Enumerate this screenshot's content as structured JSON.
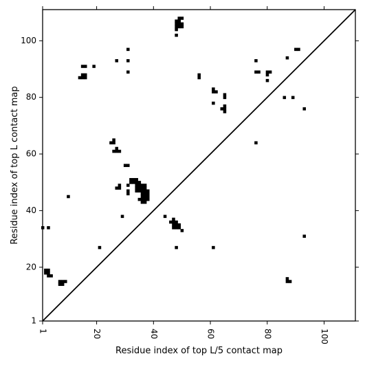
{
  "chart_data": {
    "type": "scatter",
    "title": "",
    "xlabel": "Residue index of top L/5 contact map",
    "ylabel": "Residue index of top L contact map",
    "xlim": [
      1,
      111
    ],
    "ylim": [
      1,
      111
    ],
    "xticks": [
      1,
      20,
      40,
      60,
      80,
      100
    ],
    "yticks": [
      1,
      20,
      40,
      60,
      80,
      100
    ],
    "marker": "square",
    "marker_color": "#000000",
    "grid": false,
    "diagonal": true,
    "points": [
      [
        1,
        34
      ],
      [
        3,
        34
      ],
      [
        2,
        18
      ],
      [
        2,
        19
      ],
      [
        3,
        18
      ],
      [
        3,
        19
      ],
      [
        3,
        17
      ],
      [
        4,
        17
      ],
      [
        7,
        14
      ],
      [
        7,
        15
      ],
      [
        8,
        14
      ],
      [
        8,
        15
      ],
      [
        9,
        15
      ],
      [
        10,
        45
      ],
      [
        14,
        87
      ],
      [
        15,
        87
      ],
      [
        15,
        88
      ],
      [
        16,
        87
      ],
      [
        16,
        88
      ],
      [
        15,
        91
      ],
      [
        16,
        91
      ],
      [
        19,
        91
      ],
      [
        21,
        27
      ],
      [
        25,
        64
      ],
      [
        26,
        64
      ],
      [
        26,
        65
      ],
      [
        26,
        61
      ],
      [
        27,
        61
      ],
      [
        27,
        62
      ],
      [
        28,
        61
      ],
      [
        27,
        48
      ],
      [
        28,
        48
      ],
      [
        28,
        49
      ],
      [
        27,
        93
      ],
      [
        29,
        38
      ],
      [
        30,
        56
      ],
      [
        31,
        56
      ],
      [
        31,
        97
      ],
      [
        31,
        93
      ],
      [
        31,
        89
      ],
      [
        31,
        49
      ],
      [
        31,
        47
      ],
      [
        31,
        46
      ],
      [
        32,
        50
      ],
      [
        32,
        51
      ],
      [
        33,
        50
      ],
      [
        33,
        51
      ],
      [
        34,
        51
      ],
      [
        34,
        50
      ],
      [
        34,
        49
      ],
      [
        34,
        48
      ],
      [
        34,
        47
      ],
      [
        35,
        50
      ],
      [
        35,
        49
      ],
      [
        35,
        48
      ],
      [
        35,
        47
      ],
      [
        35,
        44
      ],
      [
        36,
        49
      ],
      [
        36,
        48
      ],
      [
        36,
        47
      ],
      [
        36,
        46
      ],
      [
        36,
        45
      ],
      [
        36,
        44
      ],
      [
        36,
        43
      ],
      [
        37,
        49
      ],
      [
        37,
        48
      ],
      [
        37,
        47
      ],
      [
        37,
        46
      ],
      [
        37,
        45
      ],
      [
        37,
        44
      ],
      [
        37,
        43
      ],
      [
        38,
        47
      ],
      [
        38,
        46
      ],
      [
        38,
        45
      ],
      [
        38,
        44
      ],
      [
        44,
        38
      ],
      [
        46,
        36
      ],
      [
        47,
        36
      ],
      [
        47,
        37
      ],
      [
        47,
        35
      ],
      [
        48,
        36
      ],
      [
        48,
        35
      ],
      [
        48,
        34
      ],
      [
        47,
        34
      ],
      [
        49,
        35
      ],
      [
        49,
        34
      ],
      [
        50,
        33
      ],
      [
        48,
        27
      ],
      [
        48,
        102
      ],
      [
        48,
        104
      ],
      [
        48,
        105
      ],
      [
        48,
        106
      ],
      [
        48,
        107
      ],
      [
        49,
        105
      ],
      [
        49,
        106
      ],
      [
        49,
        107
      ],
      [
        49,
        108
      ],
      [
        50,
        105
      ],
      [
        50,
        106
      ],
      [
        50,
        108
      ],
      [
        56,
        87
      ],
      [
        56,
        88
      ],
      [
        61,
        83
      ],
      [
        61,
        82
      ],
      [
        62,
        82
      ],
      [
        61,
        78
      ],
      [
        61,
        27
      ],
      [
        64,
        76
      ],
      [
        65,
        75
      ],
      [
        65,
        76
      ],
      [
        65,
        77
      ],
      [
        65,
        80
      ],
      [
        65,
        81
      ],
      [
        76,
        93
      ],
      [
        76,
        89
      ],
      [
        77,
        89
      ],
      [
        76,
        64
      ],
      [
        80,
        89
      ],
      [
        80,
        88
      ],
      [
        81,
        89
      ],
      [
        80,
        86
      ],
      [
        86,
        80
      ],
      [
        87,
        94
      ],
      [
        87,
        15
      ],
      [
        87,
        16
      ],
      [
        88,
        15
      ],
      [
        89,
        80
      ],
      [
        90,
        97
      ],
      [
        91,
        97
      ],
      [
        93,
        76
      ],
      [
        93,
        31
      ]
    ]
  }
}
